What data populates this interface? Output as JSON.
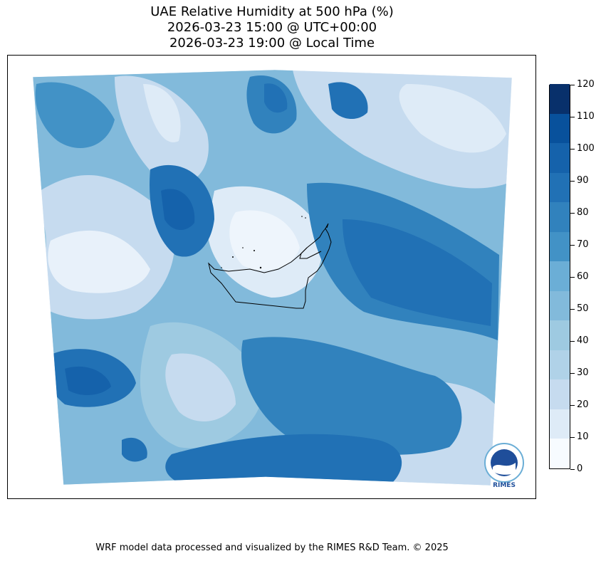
{
  "title": {
    "line1": "UAE Relative Humidity at 500 hPa (%)",
    "line2": "2026-03-23 15:00 @ UTC+00:00",
    "line3": "2026-03-23 19:00 @ Local Time"
  },
  "colorbar": {
    "min": 0,
    "max": 120,
    "levels": [
      0,
      10,
      20,
      30,
      40,
      50,
      60,
      70,
      80,
      90,
      100,
      110,
      120
    ],
    "colors": [
      "#f7fbff",
      "#deebf7",
      "#c6dbef",
      "#b0d2e8",
      "#9ecae1",
      "#82badb",
      "#6baed6",
      "#4292c6",
      "#3182bd",
      "#2171b5",
      "#1562ab",
      "#08519c",
      "#08306b"
    ],
    "tick_labels": [
      "0",
      "10",
      "20",
      "30",
      "40",
      "50",
      "60",
      "70",
      "80",
      "90",
      "100",
      "110",
      "120"
    ]
  },
  "logo": {
    "text": "RIMES"
  },
  "credit": "WRF model data processed and visualized by the RIMES R&D Team. © 2025"
}
